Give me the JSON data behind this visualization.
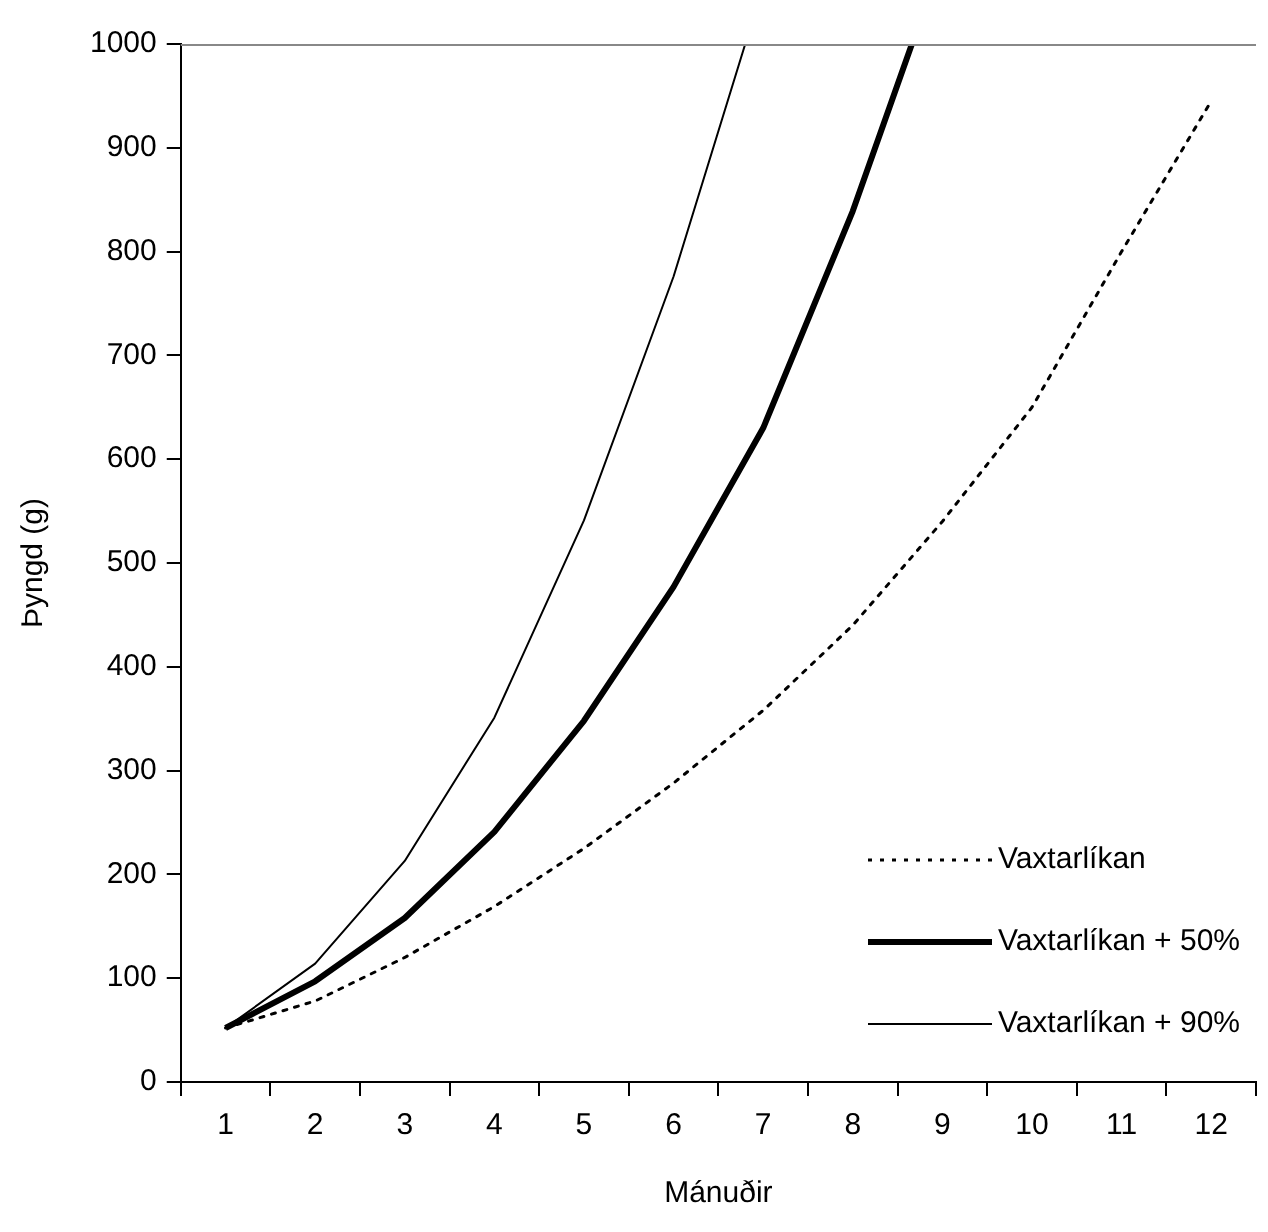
{
  "chart_data": {
    "type": "line",
    "xlabel": "Mánuðir",
    "ylabel": "Þyngd (g)",
    "xlim": [
      0.5,
      12.5
    ],
    "xticks": [
      {
        "value": 0.5,
        "label": null
      },
      1,
      {
        "value": 1.5,
        "label": null
      },
      2,
      {
        "value": 2.5,
        "label": null
      },
      3,
      {
        "value": 3.5,
        "label": null
      },
      4,
      {
        "value": 4.5,
        "label": null
      },
      5,
      {
        "value": 5.5,
        "label": null
      },
      6,
      {
        "value": 6.5,
        "label": null
      },
      7,
      {
        "value": 7.5,
        "label": null
      },
      8,
      {
        "value": 8.5,
        "label": null
      },
      9,
      {
        "value": 9.5,
        "label": null
      },
      10,
      {
        "value": 10.5,
        "label": null
      },
      11,
      {
        "value": 11.5,
        "label": null
      },
      12,
      {
        "value": 12.5,
        "label": null
      }
    ],
    "ylim": [
      0,
      1000
    ],
    "yticks": [
      0,
      100,
      200,
      300,
      400,
      500,
      600,
      700,
      800,
      900,
      1000
    ],
    "grid": false,
    "legend": "bottom right",
    "marker": "none",
    "series": [
      {
        "name": "Vaxtarlíkan",
        "color": "#000000",
        "line_style": "dotted",
        "x": [
          1,
          2,
          3,
          4,
          5,
          6,
          7,
          8,
          9,
          10,
          11,
          12
        ],
        "values": [
          52,
          78,
          120,
          169,
          225,
          288,
          358,
          440,
          540,
          650,
          800,
          945
        ]
      },
      {
        "name": "Vaxtarlíkan + 50%",
        "color": "#000000",
        "line_style": "solid",
        "x": [
          1,
          2,
          3,
          4,
          5,
          6,
          7,
          8,
          8.66
        ],
        "values": [
          52,
          97,
          158,
          241,
          348,
          477,
          630,
          839,
          1000
        ]
      },
      {
        "name": "Vaxtarlíkan + 90%",
        "color": "#000000",
        "line_style": "solid",
        "x": [
          1,
          2,
          3,
          4,
          5,
          6,
          6.8
        ],
        "values": [
          52,
          114,
          213,
          351,
          541,
          776,
          1000
        ]
      }
    ]
  }
}
